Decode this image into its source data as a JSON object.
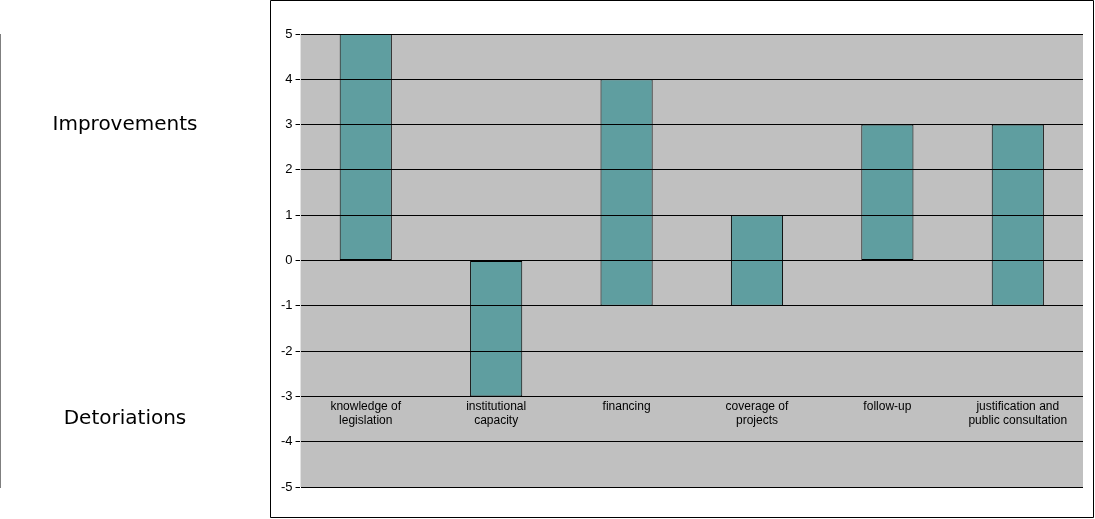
{
  "chart_data": {
    "type": "bar",
    "categories": [
      "knowledge of legislation",
      "institutional capacity",
      "financing",
      "coverage of projects",
      "follow-up",
      "justification and public consultation"
    ],
    "values": [
      5,
      3,
      5,
      2,
      3,
      4
    ],
    "base": [
      0,
      -3,
      -1,
      -1,
      0,
      -1
    ],
    "color": "#5f9ea0",
    "ylim": [
      -5,
      5
    ],
    "yticks": [
      -5,
      -4,
      -3,
      -2,
      -1,
      0,
      1,
      2,
      3,
      4,
      5
    ],
    "grid": "y",
    "legend": false,
    "annotations": [
      "Improvements",
      "Detoriations"
    ]
  }
}
